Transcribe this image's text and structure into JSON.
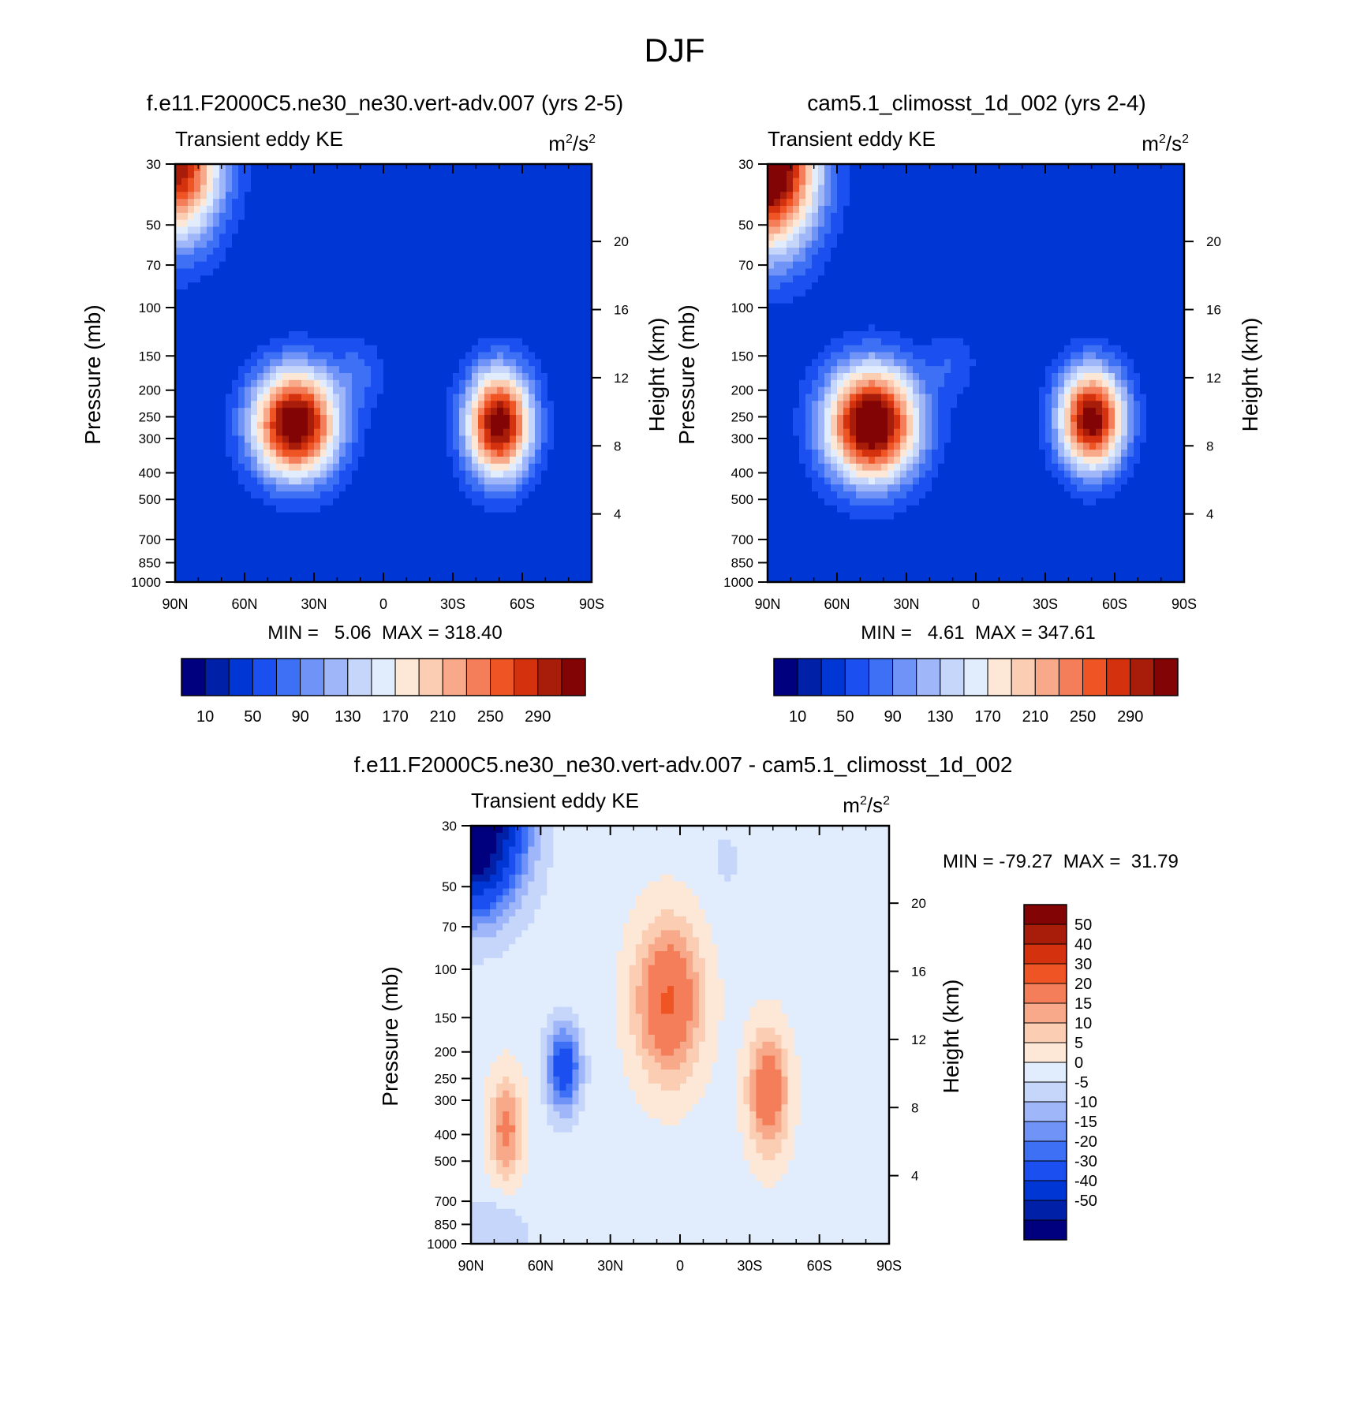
{
  "figure": {
    "title": "DJF"
  },
  "palettes": {
    "ke": [
      "#00007f",
      "#0020a8",
      "#0036d4",
      "#1b4ff0",
      "#3e70f5",
      "#7093f7",
      "#9fb6f8",
      "#c5d6fa",
      "#e1ecfc",
      "#fde8d8",
      "#fbcdb3",
      "#f7a98a",
      "#f47e5a",
      "#ee5424",
      "#d4310f",
      "#a81d0a",
      "#820404"
    ],
    "diff": [
      "#00007f",
      "#0020a8",
      "#0036d4",
      "#1b4ff0",
      "#3e70f5",
      "#7093f7",
      "#9fb6f8",
      "#c5d6fa",
      "#e1ecfc",
      "#fde8d8",
      "#fbcdb3",
      "#f7a98a",
      "#f47e5a",
      "#ee5424",
      "#d4310f",
      "#a81d0a",
      "#820404"
    ]
  },
  "chart_data": [
    {
      "type": "contour",
      "id": "model",
      "title": "f.e11.F2000C5.ne30_ne30.vert-adv.007 (yrs 2-5)",
      "left_label": "Transient eddy KE",
      "right_label": "m²/s²",
      "units": {
        "base": "m",
        "sup1": "2",
        "mid": "/s",
        "sup2": "2"
      },
      "xlabel": "",
      "ylabel": "Pressure (mb)",
      "y2label": "Height (km)",
      "x_ticks": [
        "90N",
        "60N",
        "30N",
        "0",
        "30S",
        "60S",
        "90S"
      ],
      "x_tick_values": [
        90,
        60,
        30,
        0,
        -30,
        -60,
        -90
      ],
      "p_ticks": [
        "30",
        "50",
        "70",
        "100",
        "150",
        "200",
        "250",
        "300",
        "400",
        "500",
        "700",
        "850",
        "1000"
      ],
      "p_tick_values": [
        30,
        50,
        70,
        100,
        150,
        200,
        250,
        300,
        400,
        500,
        700,
        850,
        1000
      ],
      "z_ticks": [
        "20",
        "16",
        "12",
        "8",
        "4"
      ],
      "z_tick_values": [
        20,
        16,
        12,
        8,
        4
      ],
      "stats_text": "MIN =   5.06  MAX = 318.40",
      "min": 5.06,
      "max": 318.4,
      "features": [
        {
          "lat": 38,
          "p": 265,
          "amp": 318,
          "sx": 13,
          "sy": 0.32
        },
        {
          "lat": -50,
          "p": 265,
          "amp": 300,
          "sx": 10,
          "sy": 0.32
        },
        {
          "lat": 90,
          "p": 30,
          "amp": 280,
          "sx": 14,
          "sy": 0.45
        },
        {
          "lat": 10,
          "p": 170,
          "amp": 40,
          "sx": 8,
          "sy": 0.2
        }
      ],
      "background": 30
    },
    {
      "type": "contour",
      "id": "control",
      "title": "cam5.1_climosst_1d_002 (yrs 2-4)",
      "left_label": "Transient eddy KE",
      "right_label": "m²/s²",
      "units": {
        "base": "m",
        "sup1": "2",
        "mid": "/s",
        "sup2": "2"
      },
      "xlabel": "",
      "ylabel": "Pressure (mb)",
      "y2label": "Height (km)",
      "x_ticks": [
        "90N",
        "60N",
        "30N",
        "0",
        "30S",
        "60S",
        "90S"
      ],
      "x_tick_values": [
        90,
        60,
        30,
        0,
        -30,
        -60,
        -90
      ],
      "p_ticks": [
        "30",
        "50",
        "70",
        "100",
        "150",
        "200",
        "250",
        "300",
        "400",
        "500",
        "700",
        "850",
        "1000"
      ],
      "p_tick_values": [
        30,
        50,
        70,
        100,
        150,
        200,
        250,
        300,
        400,
        500,
        700,
        850,
        1000
      ],
      "z_ticks": [
        "20",
        "16",
        "12",
        "8",
        "4"
      ],
      "z_tick_values": [
        20,
        16,
        12,
        8,
        4
      ],
      "stats_text": "MIN =   4.61  MAX = 347.61",
      "min": 4.61,
      "max": 347.61,
      "features": [
        {
          "lat": 45,
          "p": 265,
          "amp": 330,
          "sx": 14,
          "sy": 0.34
        },
        {
          "lat": -50,
          "p": 255,
          "amp": 300,
          "sx": 10,
          "sy": 0.3
        },
        {
          "lat": 90,
          "p": 30,
          "amp": 347,
          "sx": 15,
          "sy": 0.5
        },
        {
          "lat": 10,
          "p": 160,
          "amp": 35,
          "sx": 8,
          "sy": 0.2
        }
      ],
      "background": 30
    },
    {
      "type": "contour",
      "id": "difference",
      "title": "f.e11.F2000C5.ne30_ne30.vert-adv.007 - cam5.1_climosst_1d_002",
      "left_label": "Transient eddy KE",
      "right_label": "m²/s²",
      "units": {
        "base": "m",
        "sup1": "2",
        "mid": "/s",
        "sup2": "2"
      },
      "xlabel": "",
      "ylabel": "Pressure (mb)",
      "y2label": "Height (km)",
      "x_ticks": [
        "90N",
        "60N",
        "30N",
        "0",
        "30S",
        "60S",
        "90S"
      ],
      "x_tick_values": [
        90,
        60,
        30,
        0,
        -30,
        -60,
        -90
      ],
      "p_ticks": [
        "30",
        "50",
        "70",
        "100",
        "150",
        "200",
        "250",
        "300",
        "400",
        "500",
        "700",
        "850",
        "1000"
      ],
      "p_tick_values": [
        30,
        50,
        70,
        100,
        150,
        200,
        250,
        300,
        400,
        500,
        700,
        850,
        1000
      ],
      "z_ticks": [
        "20",
        "16",
        "12",
        "8",
        "4"
      ],
      "z_tick_values": [
        20,
        16,
        12,
        8,
        4
      ],
      "stats_text": "MIN = -79.27  MAX =  31.79",
      "min": -79.27,
      "max": 31.79,
      "features": [
        {
          "lat": 90,
          "p": 30,
          "amp": -79,
          "sx": 14,
          "sy": 0.45
        },
        {
          "lat": 50,
          "p": 230,
          "amp": -30,
          "sx": 5,
          "sy": 0.25
        },
        {
          "lat": 5,
          "p": 130,
          "amp": 28,
          "sx": 10,
          "sy": 0.45
        },
        {
          "lat": -38,
          "p": 280,
          "amp": 25,
          "sx": 6,
          "sy": 0.35
        },
        {
          "lat": 75,
          "p": 380,
          "amp": 20,
          "sx": 5,
          "sy": 0.3
        },
        {
          "lat": 80,
          "p": 900,
          "amp": -8,
          "sx": 10,
          "sy": 0.2
        },
        {
          "lat": -20,
          "p": 40,
          "amp": -4,
          "sx": 6,
          "sy": 0.25
        }
      ],
      "background": 3
    }
  ],
  "colorbars": {
    "model": {
      "labels": [
        "10",
        "50",
        "90",
        "130",
        "170",
        "210",
        "250",
        "290"
      ],
      "values": [
        10,
        50,
        90,
        130,
        170,
        210,
        250,
        290
      ]
    },
    "control": {
      "labels": [
        "10",
        "50",
        "90",
        "130",
        "170",
        "210",
        "250",
        "290"
      ],
      "values": [
        10,
        50,
        90,
        130,
        170,
        210,
        250,
        290
      ]
    },
    "difference": {
      "labels": [
        "50",
        "40",
        "30",
        "20",
        "15",
        "10",
        "5",
        "0",
        "-5",
        "-10",
        "-15",
        "-20",
        "-30",
        "-40",
        "-50"
      ],
      "values": [
        50,
        40,
        30,
        20,
        15,
        10,
        5,
        0,
        -5,
        -10,
        -15,
        -20,
        -30,
        -40,
        -50
      ]
    }
  }
}
